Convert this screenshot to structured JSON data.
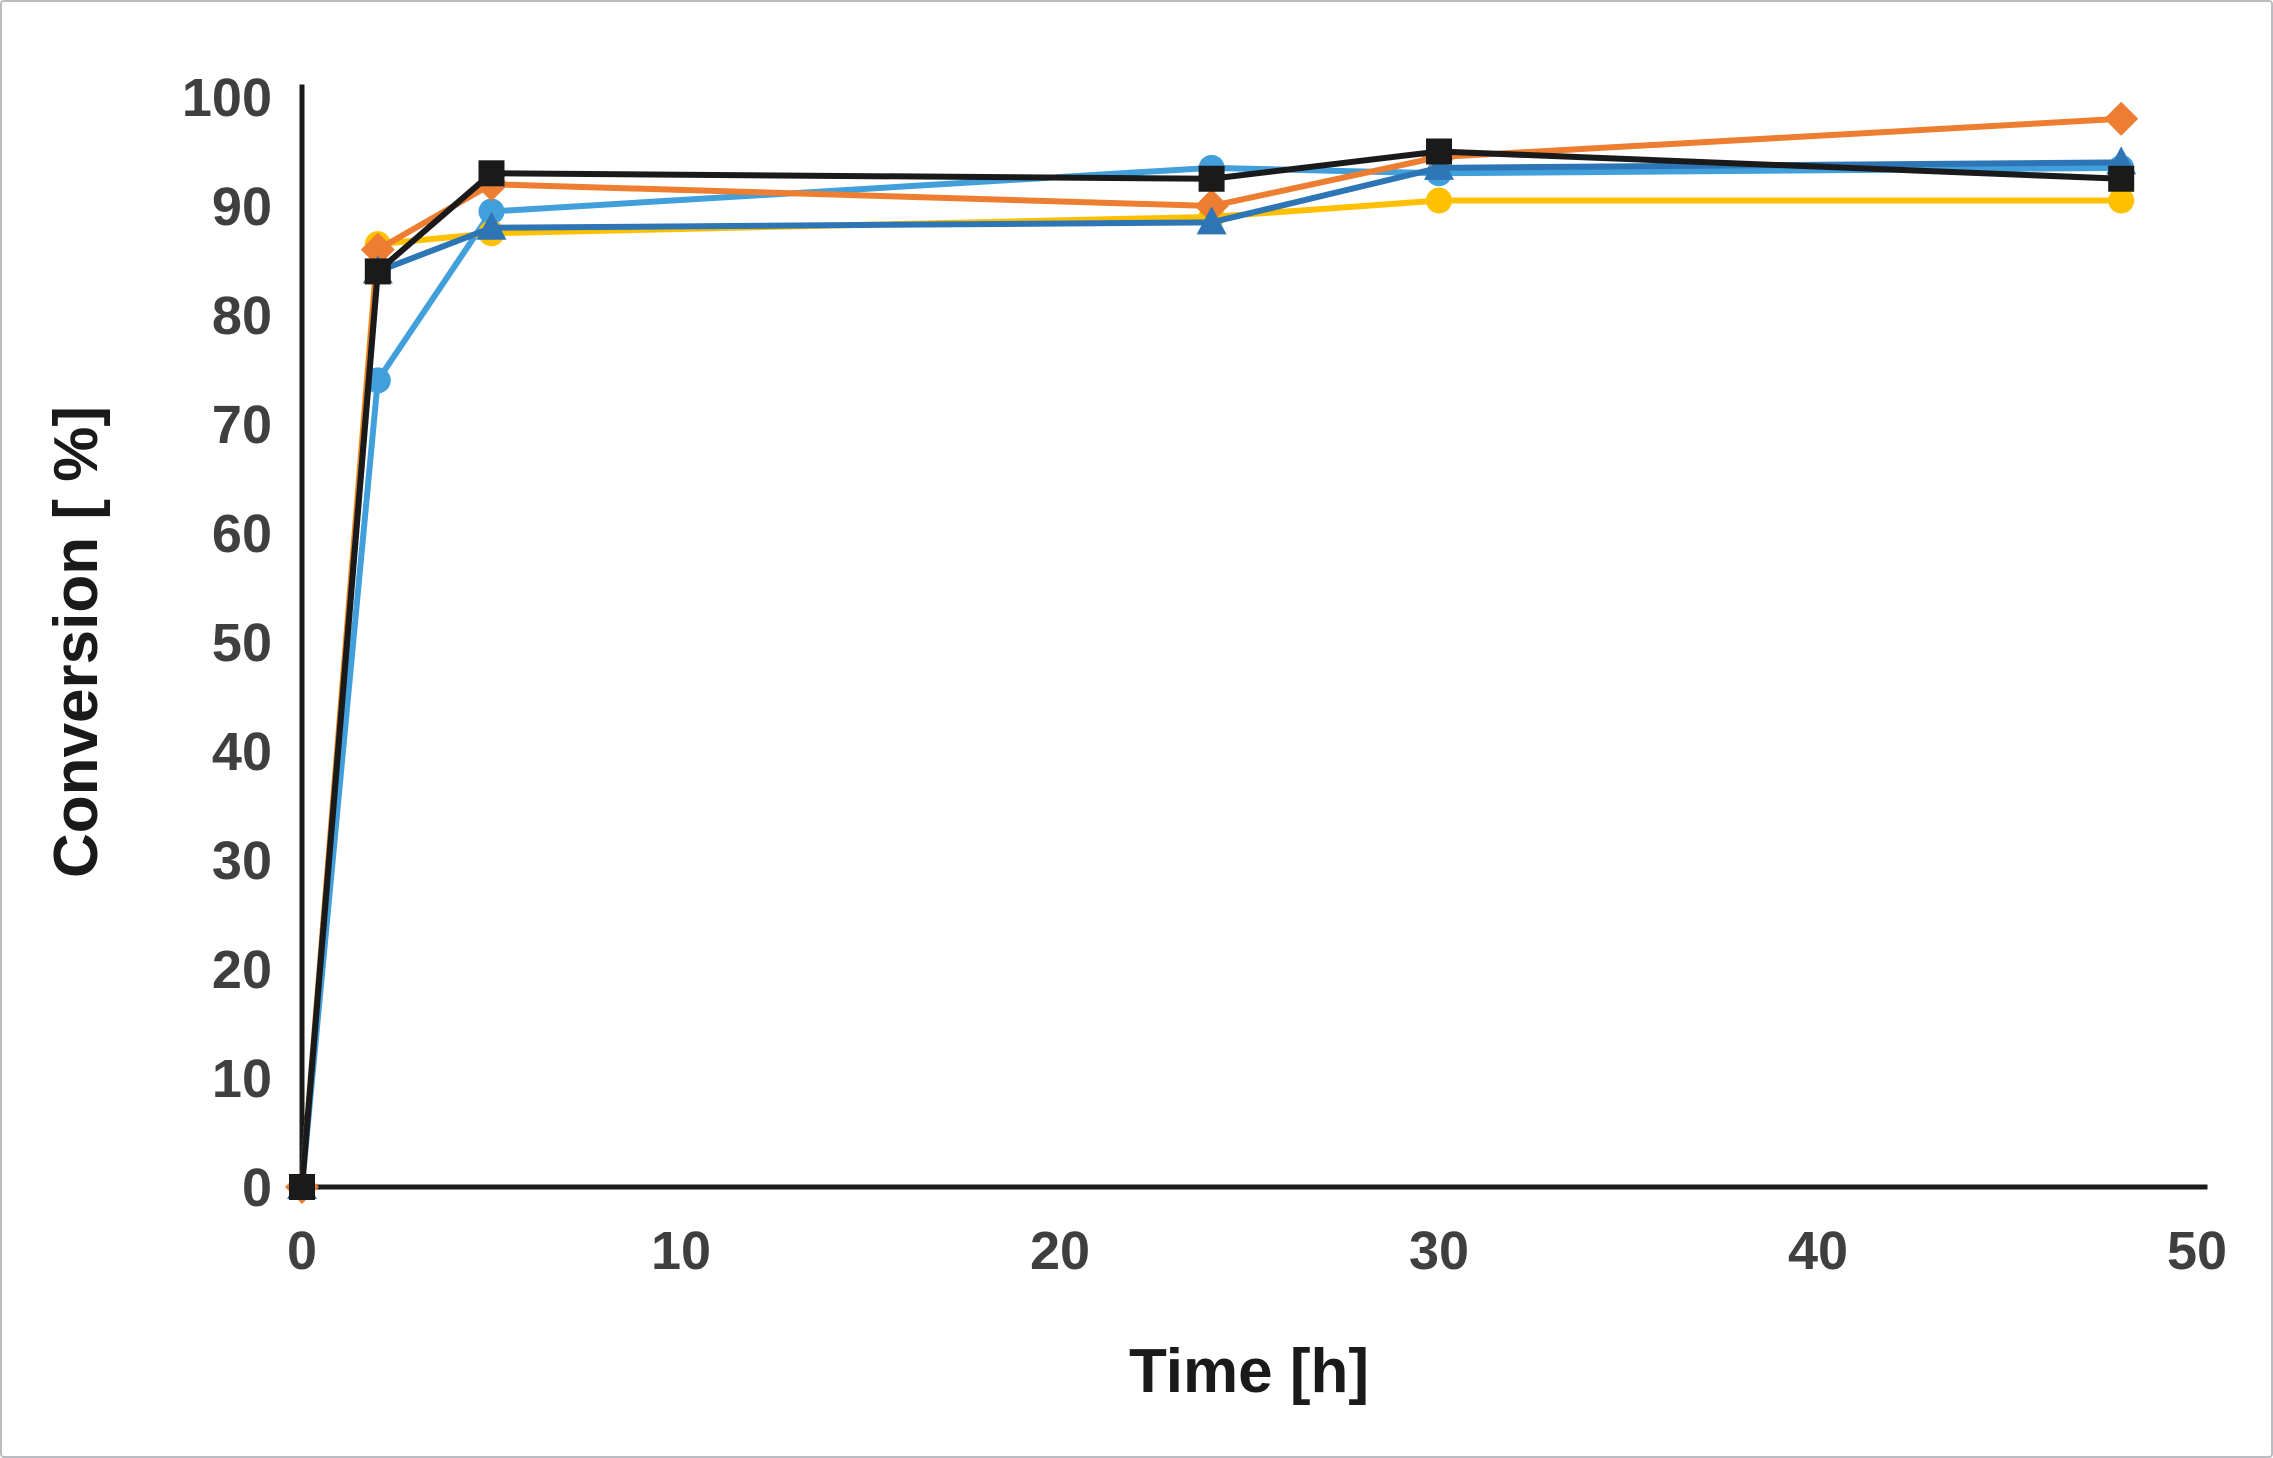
{
  "chart_data": {
    "type": "line",
    "title": "",
    "xlabel": "Time [h]",
    "ylabel": "Conversion [ %]",
    "xlim": [
      0,
      50
    ],
    "ylim": [
      0,
      100
    ],
    "xticks": [
      0,
      10,
      20,
      30,
      40,
      50
    ],
    "yticks": [
      0,
      10,
      20,
      30,
      40,
      50,
      60,
      70,
      80,
      90,
      100
    ],
    "grid": false,
    "legend": "none",
    "x": [
      0,
      2,
      5,
      24,
      30,
      48
    ],
    "series": [
      {
        "name": "light-blue-circles",
        "color": "#41A0DC",
        "marker": "circle",
        "values": [
          0,
          74,
          89.5,
          93.5,
          93,
          93.5
        ]
      },
      {
        "name": "yellow-circles",
        "color": "#FFC000",
        "marker": "circle",
        "values": [
          0,
          86.5,
          87.5,
          89,
          90.5,
          90.5
        ]
      },
      {
        "name": "orange-diamonds",
        "color": "#ED7D31",
        "marker": "diamond",
        "values": [
          0,
          86,
          92,
          90,
          94.5,
          98
        ]
      },
      {
        "name": "blue-triangles",
        "color": "#2E75B6",
        "marker": "triangle",
        "values": [
          0,
          84,
          88,
          88.5,
          93.5,
          94
        ]
      },
      {
        "name": "black-squares",
        "color": "#1a1a1a",
        "marker": "square",
        "values": [
          0,
          84,
          93,
          92.5,
          95,
          92.5
        ]
      }
    ]
  }
}
